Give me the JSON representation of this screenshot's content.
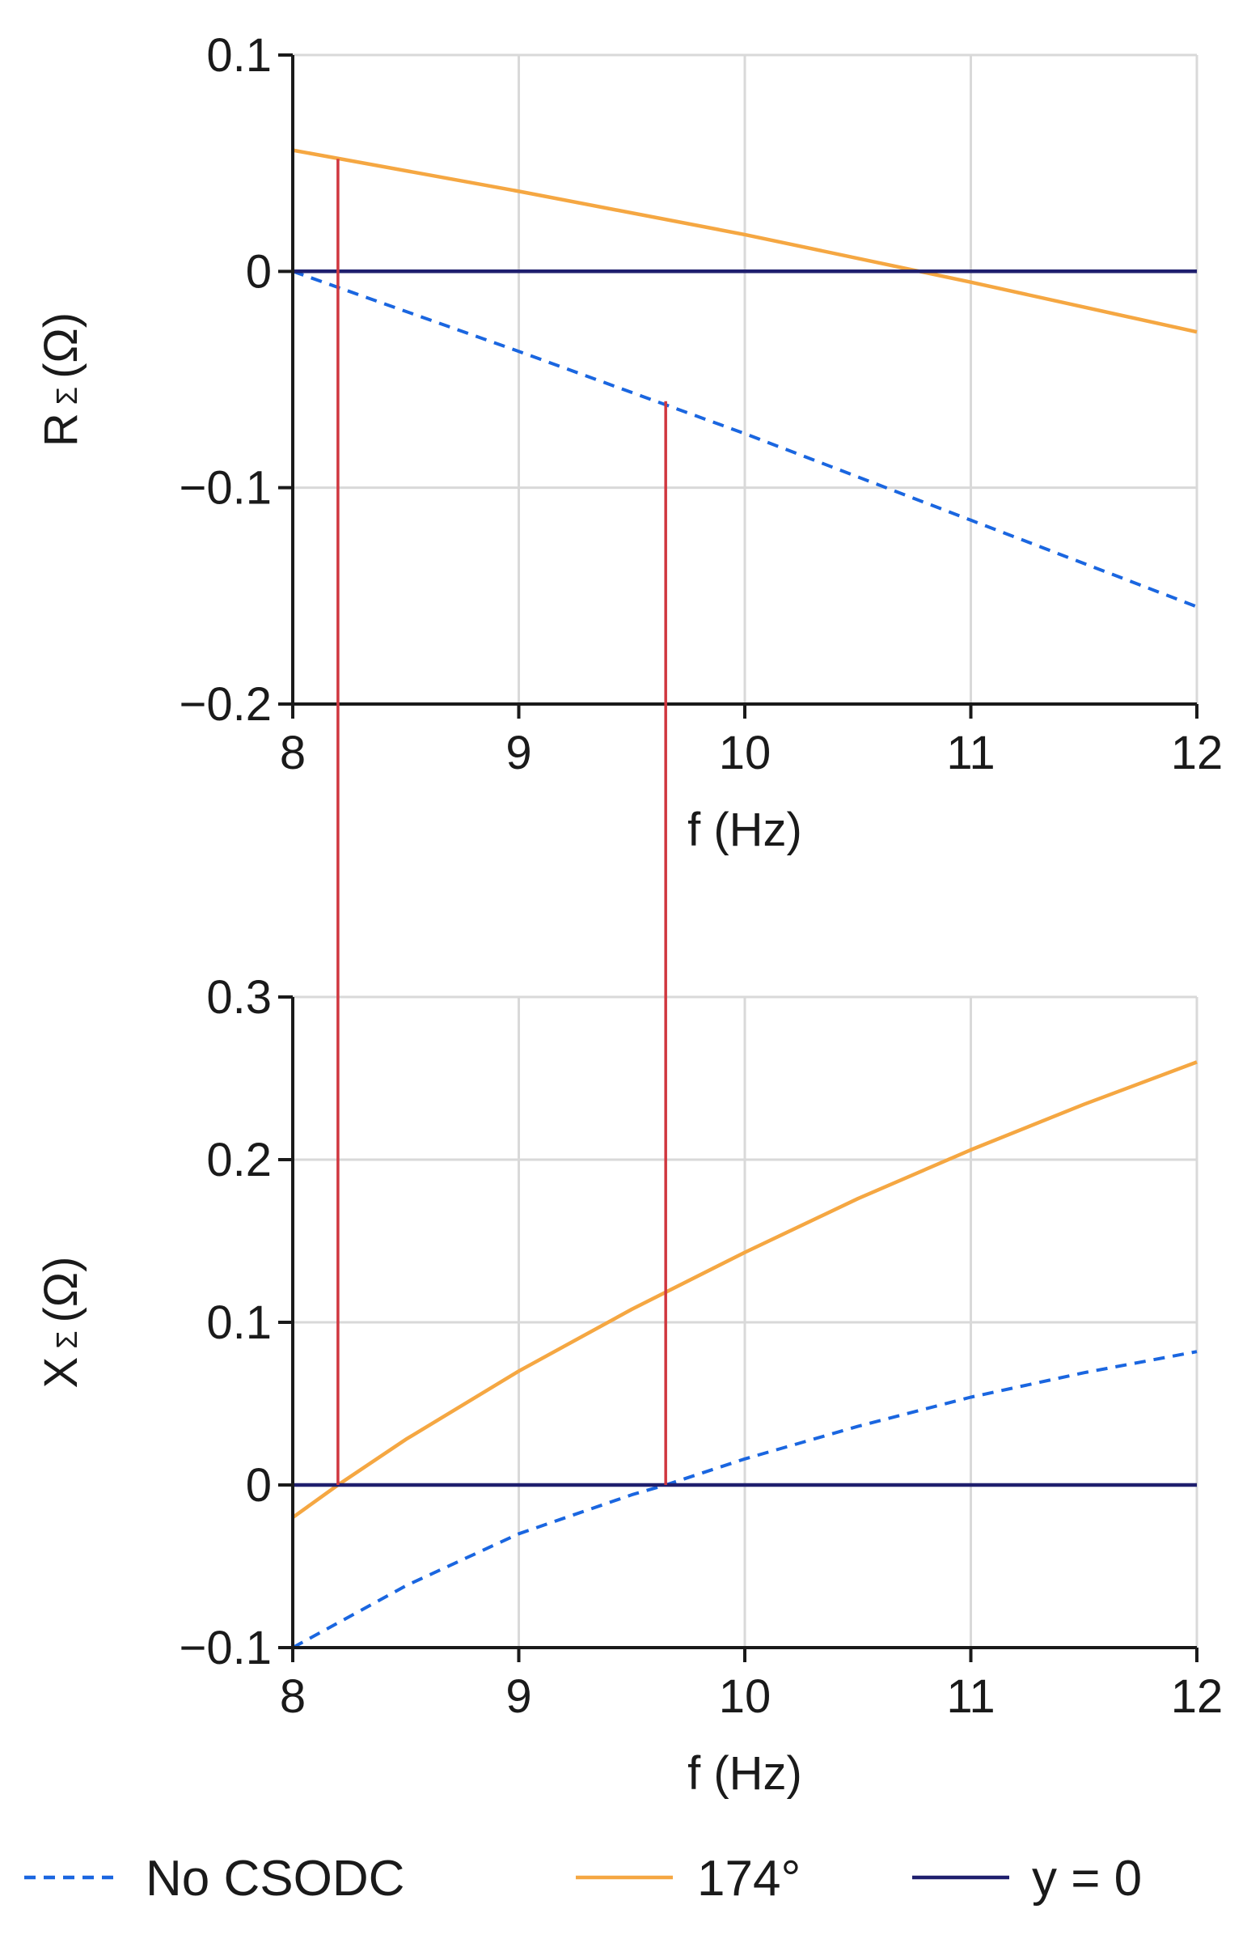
{
  "colors": {
    "no_csodc": "#1a66e0",
    "deg174": "#f5a742",
    "zero_line": "#1f1f6e",
    "marker": "#d0373f"
  },
  "legend": [
    {
      "label": "No CSODC",
      "style": "dashed",
      "color": "#1a66e0"
    },
    {
      "label": "174°",
      "style": "solid",
      "color": "#f5a742"
    },
    {
      "label": "y = 0",
      "style": "solid",
      "color": "#1f1f6e"
    }
  ],
  "chart_data": [
    {
      "type": "line",
      "title": "",
      "xlabel": "f (Hz)",
      "ylabel_main": "R",
      "ylabel_sub": "Σ",
      "ylabel_unit": "(Ω)",
      "xlim": [
        8,
        12
      ],
      "ylim": [
        -0.2,
        0.1
      ],
      "xticks": [
        8,
        9,
        10,
        11,
        12
      ],
      "xtick_labels": [
        "8",
        "9",
        "10",
        "11",
        "12"
      ],
      "yticks": [
        0.1,
        0,
        -0.1,
        -0.2
      ],
      "ytick_labels": [
        "0.1",
        "0",
        "−0.1",
        "−0.2"
      ],
      "grid": true,
      "series": [
        {
          "name": "No CSODC",
          "style": "dashed",
          "x": [
            8,
            9,
            10,
            11,
            12
          ],
          "y": [
            0.0,
            -0.037,
            -0.075,
            -0.115,
            -0.155
          ]
        },
        {
          "name": "174°",
          "style": "solid",
          "x": [
            8,
            9,
            10,
            11,
            12
          ],
          "y": [
            0.056,
            0.037,
            0.017,
            -0.005,
            -0.028
          ]
        },
        {
          "name": "y = 0",
          "style": "solid",
          "x": [
            8,
            12
          ],
          "y": [
            0,
            0
          ]
        }
      ]
    },
    {
      "type": "line",
      "title": "",
      "xlabel": "f (Hz)",
      "ylabel_main": "X",
      "ylabel_sub": "Σ",
      "ylabel_unit": "(Ω)",
      "xlim": [
        8,
        12
      ],
      "ylim": [
        -0.1,
        0.3
      ],
      "xticks": [
        8,
        9,
        10,
        11,
        12
      ],
      "xtick_labels": [
        "8",
        "9",
        "10",
        "11",
        "12"
      ],
      "yticks": [
        0.3,
        0.2,
        0.1,
        0,
        -0.1
      ],
      "ytick_labels": [
        "0.3",
        "0.2",
        "0.1",
        "0",
        "−0.1"
      ],
      "grid": true,
      "series": [
        {
          "name": "No CSODC",
          "style": "dashed",
          "x": [
            8,
            8.5,
            9,
            9.5,
            9.65,
            10,
            10.5,
            11,
            11.5,
            12
          ],
          "y": [
            -0.1,
            -0.062,
            -0.03,
            -0.006,
            0.0,
            0.016,
            0.036,
            0.054,
            0.069,
            0.082
          ]
        },
        {
          "name": "174°",
          "style": "solid",
          "x": [
            8,
            8.2,
            8.5,
            9,
            9.5,
            10,
            10.5,
            11,
            11.5,
            12
          ],
          "y": [
            -0.02,
            0.0,
            0.028,
            0.07,
            0.108,
            0.143,
            0.176,
            0.206,
            0.234,
            0.26
          ]
        },
        {
          "name": "y = 0",
          "style": "solid",
          "x": [
            8,
            12
          ],
          "y": [
            0,
            0
          ]
        }
      ]
    }
  ],
  "marker_lines": [
    {
      "x": 8.2,
      "from": {
        "chart": 1,
        "y": 0
      },
      "to": {
        "chart": 0,
        "y": 0.052
      }
    },
    {
      "x": 9.65,
      "from": {
        "chart": 1,
        "y": 0
      },
      "to": {
        "chart": 0,
        "y": -0.06
      }
    }
  ]
}
